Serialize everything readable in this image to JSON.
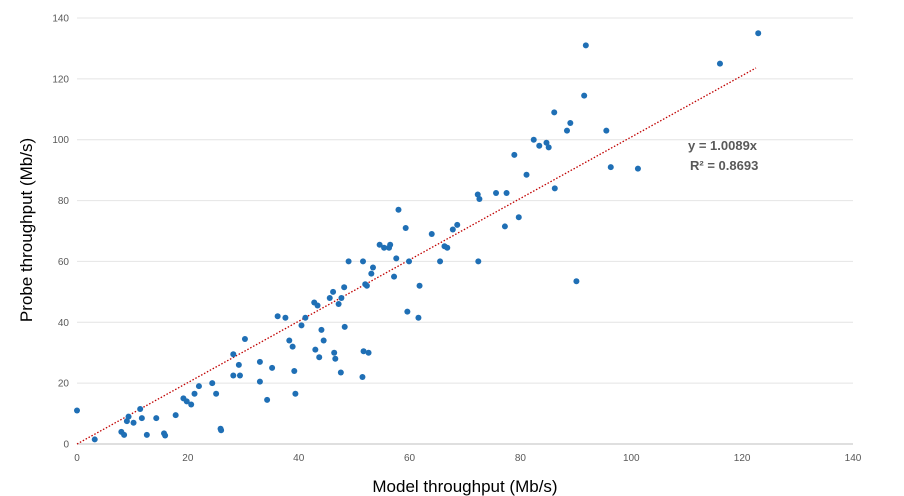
{
  "chart_data": {
    "type": "scatter",
    "xlabel": "Model throughput (Mb/s)",
    "ylabel": "Probe throughput (Mb/s)",
    "xlim": [
      0,
      140
    ],
    "ylim": [
      0,
      140
    ],
    "xticks": [
      0,
      20,
      40,
      60,
      80,
      100,
      120,
      140
    ],
    "yticks": [
      0,
      20,
      40,
      60,
      80,
      100,
      120,
      140
    ],
    "grid": "horizontal",
    "legend": "none",
    "point_color": "#1f6fb5",
    "trendline": {
      "type": "linear-through-origin",
      "slope": 1.0089,
      "x_range": [
        0,
        122.5
      ],
      "color": "#c00000",
      "style": "dotted",
      "equation": "y = 1.0089x",
      "r_squared": "R² = 0.8693"
    },
    "points": [
      [
        0,
        11
      ],
      [
        3.2,
        1.5
      ],
      [
        8,
        4
      ],
      [
        8.5,
        3
      ],
      [
        9,
        7.5
      ],
      [
        9.3,
        9
      ],
      [
        10.2,
        7
      ],
      [
        11.4,
        11.5
      ],
      [
        11.7,
        8.5
      ],
      [
        12.6,
        3
      ],
      [
        14.3,
        8.5
      ],
      [
        15.7,
        3.5
      ],
      [
        15.9,
        2.8
      ],
      [
        17.8,
        9.5
      ],
      [
        19.2,
        15
      ],
      [
        19.8,
        14
      ],
      [
        20.6,
        13
      ],
      [
        21.2,
        16.5
      ],
      [
        22,
        19
      ],
      [
        24.4,
        20
      ],
      [
        25.1,
        16.5
      ],
      [
        25.9,
        5
      ],
      [
        26,
        4.5
      ],
      [
        28.2,
        29.5
      ],
      [
        28.2,
        22.5
      ],
      [
        29.2,
        26
      ],
      [
        29.4,
        22.5
      ],
      [
        30.3,
        34.5
      ],
      [
        33,
        27
      ],
      [
        33,
        20.5
      ],
      [
        34.3,
        14.5
      ],
      [
        35.2,
        25
      ],
      [
        36.2,
        42
      ],
      [
        37.6,
        41.5
      ],
      [
        38.3,
        34
      ],
      [
        38.9,
        32
      ],
      [
        39.2,
        24
      ],
      [
        39.4,
        16.5
      ],
      [
        40.5,
        39
      ],
      [
        41.2,
        41.5
      ],
      [
        42.8,
        46.5
      ],
      [
        43,
        31
      ],
      [
        43.4,
        45.5
      ],
      [
        43.7,
        28.5
      ],
      [
        44.1,
        37.5
      ],
      [
        44.5,
        34
      ],
      [
        45.6,
        48
      ],
      [
        46.2,
        50
      ],
      [
        46.4,
        30
      ],
      [
        46.6,
        28
      ],
      [
        47.2,
        46
      ],
      [
        47.6,
        23.5
      ],
      [
        47.7,
        48
      ],
      [
        48.2,
        51.5
      ],
      [
        48.3,
        38.5
      ],
      [
        49,
        60
      ],
      [
        51.5,
        22
      ],
      [
        51.6,
        60
      ],
      [
        51.7,
        30.5
      ],
      [
        52,
        52.5
      ],
      [
        52.3,
        52
      ],
      [
        52.6,
        30
      ],
      [
        53.1,
        56
      ],
      [
        53.4,
        58
      ],
      [
        54.6,
        65.5
      ],
      [
        55.4,
        64.5
      ],
      [
        56.3,
        64.5
      ],
      [
        56.5,
        65.5
      ],
      [
        57.2,
        55
      ],
      [
        57.6,
        61
      ],
      [
        58,
        77
      ],
      [
        59.3,
        71
      ],
      [
        59.6,
        43.5
      ],
      [
        59.9,
        60
      ],
      [
        61.6,
        41.5
      ],
      [
        61.8,
        52
      ],
      [
        64,
        69
      ],
      [
        65.5,
        60
      ],
      [
        66.3,
        65
      ],
      [
        66.8,
        64.5
      ],
      [
        67.8,
        70.5
      ],
      [
        68.6,
        72
      ],
      [
        72.3,
        82
      ],
      [
        72.4,
        60
      ],
      [
        72.6,
        80.5
      ],
      [
        75.6,
        82.5
      ],
      [
        77.2,
        71.5
      ],
      [
        77.5,
        82.5
      ],
      [
        78.9,
        95
      ],
      [
        79.7,
        74.5
      ],
      [
        81.1,
        88.5
      ],
      [
        82.4,
        100
      ],
      [
        83.4,
        98
      ],
      [
        84.7,
        99
      ],
      [
        85.1,
        97.5
      ],
      [
        86.1,
        109
      ],
      [
        86.2,
        84
      ],
      [
        88.4,
        103
      ],
      [
        89,
        105.5
      ],
      [
        90.1,
        53.5
      ],
      [
        91.5,
        114.5
      ],
      [
        91.8,
        131
      ],
      [
        95.5,
        103
      ],
      [
        96.3,
        91
      ],
      [
        101.2,
        90.5
      ],
      [
        116,
        125
      ],
      [
        122.9,
        135
      ]
    ]
  }
}
